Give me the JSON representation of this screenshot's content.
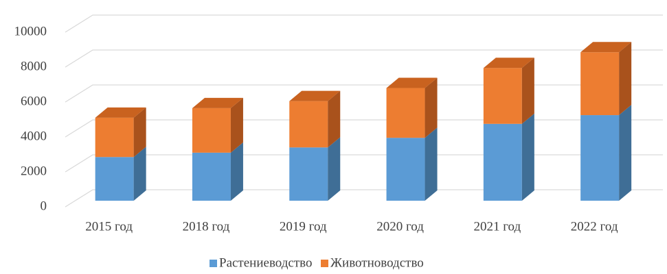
{
  "chart_data": {
    "type": "bar3d_stacked",
    "categories": [
      "2015 год",
      "2018 год",
      "2019 год",
      "2020 год",
      "2021 год",
      "2022 год"
    ],
    "series": [
      {
        "name": "Растениеводство",
        "color": "#5b9bd5",
        "side_color": "#3f6e96",
        "top_color": "#7fb2e0",
        "values": [
          2500,
          2750,
          3050,
          3600,
          4400,
          4900
        ]
      },
      {
        "name": "Животноводство",
        "color": "#ed7d31",
        "side_color": "#a9521c",
        "top_color": "#c9621f",
        "values": [
          2250,
          2550,
          2650,
          2850,
          3200,
          3600
        ]
      }
    ],
    "ylim": [
      0,
      12000
    ],
    "yticks": [
      0,
      2000,
      4000,
      6000,
      8000,
      10000
    ],
    "grid": true,
    "legend": "bottom"
  }
}
